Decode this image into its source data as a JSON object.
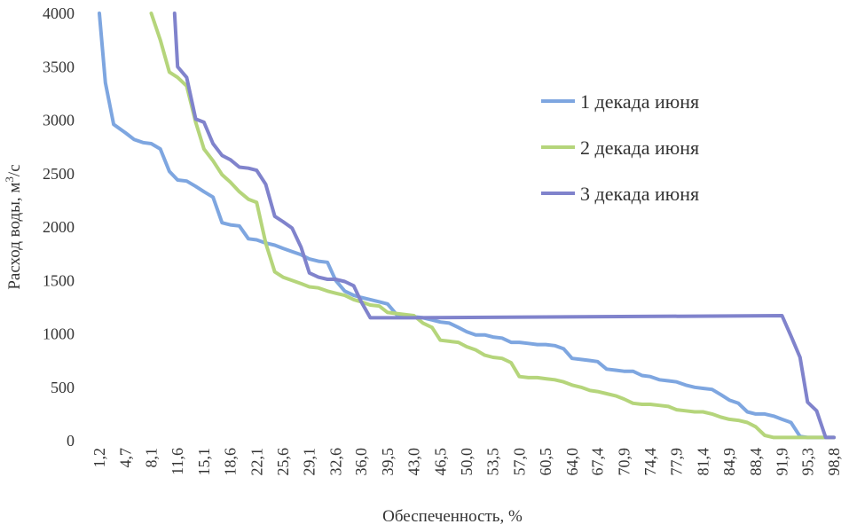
{
  "chart_data": {
    "type": "line",
    "title": "",
    "xlabel": "Обеспеченность, %",
    "ylabel_main": "Расход воды, м",
    "ylabel_sup": "3",
    "ylabel_tail": "/с",
    "ylim": [
      0,
      4000
    ],
    "yticks": [
      "0",
      "500",
      "1000",
      "1500",
      "2000",
      "2500",
      "3000",
      "3500",
      "4000"
    ],
    "xlim": [
      1.2,
      98.8
    ],
    "xtick_labels": [
      "1,2",
      "4,7",
      "8,1",
      "11,6",
      "15,1",
      "18,6",
      "22,1",
      "25,6",
      "29,1",
      "32,6",
      "36,0",
      "39,5",
      "43,0",
      "46,5",
      "50,0",
      "53,5",
      "57,0",
      "60,5",
      "64,0",
      "67,4",
      "70,9",
      "74,4",
      "77,9",
      "81,4",
      "84,9",
      "88,4",
      "91,9",
      "95,3",
      "98,8"
    ],
    "xtick_values": [
      1.2,
      4.7,
      8.1,
      11.6,
      15.1,
      18.6,
      22.1,
      25.6,
      29.1,
      32.6,
      36.0,
      39.5,
      43.0,
      46.5,
      50.0,
      53.5,
      57.0,
      60.5,
      64.0,
      67.4,
      70.9,
      74.4,
      77.9,
      81.4,
      84.9,
      88.4,
      91.9,
      95.3,
      98.8
    ],
    "legend_position": "right",
    "series": [
      {
        "name": "1 декада июня",
        "color": "#7ea6e0",
        "x": [
          1.2,
          2.0,
          3.1,
          4.7,
          5.8,
          7.0,
          8.1,
          9.3,
          10.5,
          11.6,
          12.8,
          14.0,
          15.1,
          16.3,
          17.5,
          18.6,
          19.8,
          21.0,
          22.1,
          23.3,
          24.5,
          25.6,
          26.8,
          28.0,
          29.1,
          30.3,
          31.5,
          32.6,
          33.8,
          35.0,
          36.0,
          37.2,
          38.4,
          39.5,
          40.7,
          41.9,
          43.0,
          44.2,
          45.4,
          46.5,
          47.7,
          48.9,
          50.0,
          51.2,
          52.4,
          53.5,
          54.7,
          55.9,
          57.0,
          58.2,
          59.4,
          60.5,
          61.7,
          62.9,
          64.0,
          65.2,
          66.4,
          67.4,
          68.6,
          69.8,
          70.9,
          72.1,
          73.3,
          74.4,
          75.6,
          76.8,
          77.9,
          79.1,
          80.3,
          81.4,
          82.6,
          83.8,
          84.9,
          86.1,
          87.3,
          88.4,
          89.6,
          90.8,
          91.9,
          93.1,
          94.3,
          95.3,
          96.5,
          97.7,
          98.8
        ],
        "y": [
          4000,
          3350,
          2960,
          2880,
          2820,
          2790,
          2780,
          2730,
          2520,
          2440,
          2430,
          2380,
          2330,
          2280,
          2040,
          2020,
          2010,
          1890,
          1880,
          1850,
          1830,
          1800,
          1770,
          1740,
          1700,
          1680,
          1670,
          1500,
          1400,
          1360,
          1340,
          1320,
          1300,
          1280,
          1180,
          1170,
          1160,
          1150,
          1130,
          1110,
          1100,
          1060,
          1020,
          990,
          990,
          970,
          960,
          920,
          920,
          910,
          900,
          900,
          890,
          860,
          770,
          760,
          750,
          740,
          670,
          660,
          650,
          650,
          610,
          600,
          570,
          560,
          550,
          520,
          500,
          490,
          480,
          430,
          380,
          350,
          270,
          250,
          250,
          230,
          200,
          170,
          40,
          30,
          30,
          30,
          30
        ]
      },
      {
        "name": "2 декада июня",
        "color": "#b5d57b",
        "x": [
          8.1,
          9.3,
          10.5,
          11.6,
          12.8,
          14.0,
          15.1,
          16.3,
          17.5,
          18.6,
          19.8,
          21.0,
          22.1,
          23.3,
          24.5,
          25.6,
          26.8,
          28.0,
          29.1,
          30.3,
          31.5,
          32.6,
          33.8,
          35.0,
          36.0,
          37.2,
          38.4,
          39.5,
          40.7,
          41.9,
          43.0,
          44.2,
          45.4,
          46.5,
          47.7,
          48.9,
          50.0,
          51.2,
          52.4,
          53.5,
          54.7,
          55.9,
          57.0,
          58.2,
          59.4,
          60.5,
          61.7,
          62.9,
          64.0,
          65.2,
          66.4,
          67.4,
          68.6,
          69.8,
          70.9,
          72.1,
          73.3,
          74.4,
          75.6,
          76.8,
          77.9,
          79.1,
          80.3,
          81.4,
          82.6,
          83.8,
          84.9,
          86.1,
          87.3,
          88.4,
          89.6,
          90.8,
          91.9,
          93.1,
          94.3,
          95.3,
          96.5,
          97.7,
          98.8
        ],
        "y": [
          4000,
          3750,
          3450,
          3400,
          3320,
          2980,
          2730,
          2620,
          2490,
          2420,
          2330,
          2260,
          2230,
          1850,
          1580,
          1530,
          1500,
          1470,
          1440,
          1430,
          1400,
          1380,
          1360,
          1320,
          1300,
          1270,
          1260,
          1200,
          1190,
          1180,
          1170,
          1100,
          1060,
          940,
          930,
          920,
          880,
          850,
          800,
          780,
          770,
          730,
          600,
          590,
          590,
          580,
          570,
          550,
          520,
          500,
          470,
          460,
          440,
          420,
          390,
          350,
          340,
          340,
          330,
          320,
          290,
          280,
          270,
          270,
          250,
          220,
          200,
          190,
          170,
          130,
          50,
          30,
          30,
          30,
          30,
          30,
          30,
          30,
          30
        ]
      },
      {
        "name": "3 декада июня",
        "color": "#8083cc",
        "x": [
          11.2,
          11.6,
          12.8,
          14.0,
          15.1,
          16.3,
          17.5,
          18.6,
          19.8,
          21.0,
          22.1,
          23.3,
          24.5,
          25.6,
          26.8,
          28.0,
          29.1,
          30.3,
          31.5,
          32.6,
          33.8,
          35.0,
          36.0,
          37.2,
          38.4,
          39.5,
          43.0,
          91.9,
          93.1,
          94.3,
          95.3,
          96.5,
          97.7,
          98.8
        ],
        "y": [
          4000,
          3500,
          3400,
          3010,
          2980,
          2780,
          2670,
          2630,
          2560,
          2550,
          2530,
          2400,
          2100,
          2050,
          1990,
          1810,
          1570,
          1530,
          1510,
          1510,
          1490,
          1450,
          1300,
          1150,
          1150,
          1150,
          1150,
          1170,
          980,
          780,
          360,
          280,
          30,
          30
        ]
      }
    ]
  }
}
